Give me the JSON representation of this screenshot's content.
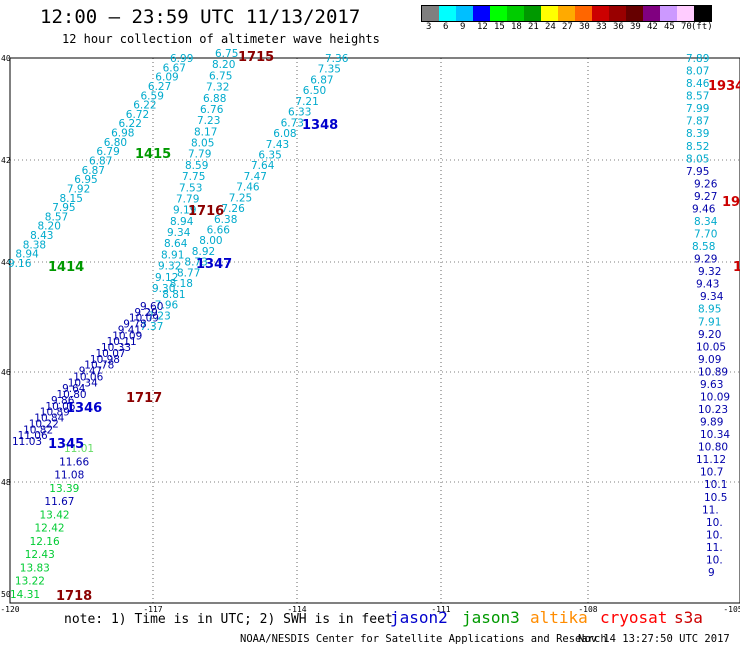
{
  "header": {
    "title": "12:00 – 23:59 UTC 11/13/2017",
    "subtitle": "12 hour collection of altimeter wave heights"
  },
  "scale": {
    "colors": [
      "#7f7f7f",
      "#00ffff",
      "#00bfff",
      "#0000ff",
      "#00ff00",
      "#00cc00",
      "#009900",
      "#ffff00",
      "#ffaa00",
      "#ff6600",
      "#cc0000",
      "#990000",
      "#660000",
      "#800080",
      "#cc99ff",
      "#ffccff",
      "#000000"
    ],
    "labels": [
      "3",
      "6",
      "9",
      "12",
      "15",
      "18",
      "21",
      "24",
      "27",
      "30",
      "33",
      "36",
      "39",
      "42",
      "45",
      "70",
      "(ft)"
    ]
  },
  "axes": {
    "lat_labels": [
      "40",
      "42",
      "44",
      "46",
      "48",
      "50"
    ],
    "lon_labels": [
      "-120",
      "-117",
      "-114",
      "-111",
      "-108",
      "-105"
    ]
  },
  "note": "note:  1) Time is in UTC;  2) SWH is in feet",
  "legend": [
    {
      "name": "jason2",
      "color": "#0000cc"
    },
    {
      "name": "jason3",
      "color": "#009900"
    },
    {
      "name": "altika",
      "color": "#ff8c00"
    },
    {
      "name": "cryosat",
      "color": "#ff0000"
    },
    {
      "name": "s3a",
      "color": "#cc0000"
    }
  ],
  "credit": "NOAA/NESDIS Center for Satellite Applications and Research",
  "timestamp": "Nov 14 13:27:50 UTC 2017",
  "track_labels": [
    {
      "text": "1715",
      "color": "#8b0000"
    },
    {
      "text": "1348",
      "color": "#0000cc"
    },
    {
      "text": "1415",
      "color": "#009900"
    },
    {
      "text": "1716",
      "color": "#8b0000"
    },
    {
      "text": "1414",
      "color": "#009900"
    },
    {
      "text": "1347",
      "color": "#0000cc"
    },
    {
      "text": "1717",
      "color": "#8b0000"
    },
    {
      "text": "1346",
      "color": "#0000cc"
    },
    {
      "text": "1345",
      "color": "#0000cc"
    },
    {
      "text": "1718",
      "color": "#8b0000"
    },
    {
      "text": "1934",
      "color": "#cc0000"
    },
    {
      "text": "19",
      "color": "#cc0000"
    },
    {
      "text": "1",
      "color": "#cc0000"
    }
  ],
  "tracks": [
    {
      "name": "jason3-1415",
      "color": "#00aacc",
      "values": [
        "6.99",
        "6.67",
        "6.09",
        "6.27",
        "6.59",
        "6.22",
        "6.72",
        "6.22",
        "6.98",
        "6.80",
        "6.79",
        "6.87",
        "6.87",
        "6.95",
        "7.92",
        "8.15",
        "7.95",
        "8.57",
        "8.20",
        "8.43",
        "8.38",
        "8.94",
        "9.16"
      ]
    },
    {
      "name": "s3a-1715",
      "color": "#00aacc",
      "values": [
        "6.75",
        "8.20",
        "6.75",
        "7.32",
        "6.88",
        "6.76",
        "7.23",
        "8.17",
        "8.05",
        "7.79",
        "8.59",
        "7.75",
        "7.53",
        "7.79",
        "9.19",
        "8.94",
        "9.34",
        "8.64",
        "8.91",
        "9.32",
        "9.12",
        "9.30"
      ]
    },
    {
      "name": "jason2-1348",
      "color": "#00aacc",
      "values": [
        "7.36",
        "7.35",
        "6.87",
        "6.50",
        "7.21",
        "6.33",
        "6.73",
        "6.08",
        "7.43",
        "6.35",
        "7.64",
        "7.47",
        "7.46",
        "7.25",
        "7.26",
        "6.38",
        "6.66",
        "8.00",
        "8.92",
        "8.73",
        "8.77",
        "8.18",
        "8.81",
        "7.96",
        "7.23",
        "7.37"
      ]
    },
    {
      "name": "southern-dense",
      "color": "#0000aa",
      "values": [
        "9.60",
        "9.29",
        "10.09",
        "9.78",
        "9.41",
        "10.09",
        "10.11",
        "10.33",
        "10.07",
        "10.98",
        "10.78",
        "9.47",
        "10.06",
        "10.34",
        "9.64",
        "10.80",
        "9.86",
        "10.06",
        "10.89",
        "10.84",
        "10.22",
        "10.82",
        "11.06",
        "11.03"
      ]
    },
    {
      "name": "jason3-1414",
      "color": "#00cc33",
      "values": [
        "11.01",
        "11.66",
        "11.08",
        "13.39",
        "11.67",
        "13.42",
        "12.42",
        "12.16",
        "12.43",
        "13.83",
        "13.22",
        "14.31"
      ]
    },
    {
      "name": "cryosat-1934",
      "color": "#00aacc",
      "values": [
        "7.89",
        "8.07",
        "8.46",
        "8.57",
        "7.99",
        "7.87",
        "8.39",
        "8.52",
        "8.05",
        "7.95",
        "9.26",
        "9.27",
        "9.46",
        "8.34",
        "7.70",
        "8.58",
        "9.29",
        "9.32",
        "9.43",
        "9.34",
        "8.95",
        "7.91",
        "9.20",
        "10.05",
        "9.09",
        "10.89",
        "9.63",
        "10.09",
        "10.23",
        "9.89",
        "10.34",
        "10.80",
        "11.12",
        "10.7",
        "10.1",
        "10.5",
        "11.",
        "10.",
        "10.",
        "11.",
        "10.",
        "9"
      ]
    }
  ]
}
